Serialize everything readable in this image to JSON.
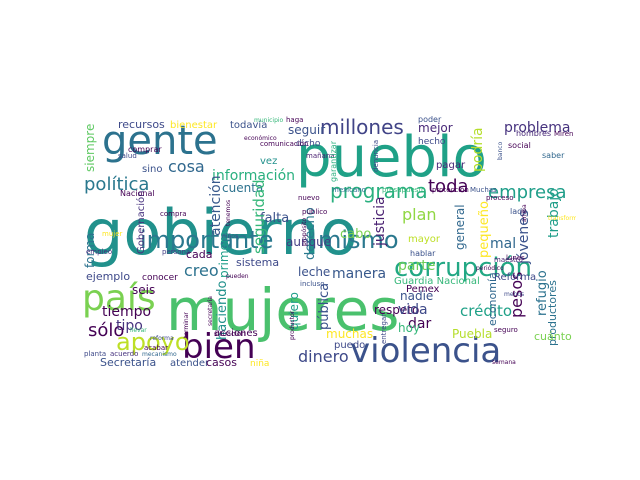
{
  "words": [
    {
      "text": "gobierno",
      "color": "#21918c"
    },
    {
      "text": "mujeres",
      "color": "#4ac16d"
    },
    {
      "text": "pueblo",
      "color": "#1fa187"
    },
    {
      "text": "gente",
      "color": "#2c728e"
    },
    {
      "text": "violencia",
      "color": "#3b528b"
    },
    {
      "text": "bien",
      "color": "#440154"
    },
    {
      "text": "país",
      "color": "#7ad151"
    },
    {
      "text": "corrupción",
      "color": "#22a884"
    },
    {
      "text": "importante",
      "color": "#2a788e"
    },
    {
      "text": "mismo",
      "color": "#2a788e"
    },
    {
      "text": "apoyo",
      "color": "#bddf26"
    },
    {
      "text": "millones",
      "color": "#414487"
    },
    {
      "text": "programa",
      "color": "#2ab07f"
    },
    {
      "text": "empresa",
      "color": "#1f9e89"
    },
    {
      "text": "política",
      "color": "#2a788e"
    },
    {
      "text": "toda",
      "color": "#440154"
    },
    {
      "text": "dinero",
      "color": "#3e4989"
    },
    {
      "text": "cosa",
      "color": "#31688e"
    },
    {
      "text": "información",
      "color": "#2ab07f"
    },
    {
      "text": "sólo",
      "color": "#440154"
    },
    {
      "text": "problema",
      "color": "#46327e"
    },
    {
      "text": "mejor",
      "color": "#482878"
    },
    {
      "text": "seguir",
      "color": "#3b528b"
    },
    {
      "text": "siempre",
      "color": "#5ec962"
    },
    {
      "text": "recursos",
      "color": "#3e4989"
    },
    {
      "text": "bienestar",
      "color": "#fde725"
    },
    {
      "text": "todavía",
      "color": "#3b528b"
    },
    {
      "text": "hecho",
      "color": "#3e4989"
    },
    {
      "text": "poder",
      "color": "#3b528b"
    },
    {
      "text": "podría",
      "color": "#b5de2b"
    },
    {
      "text": "saber",
      "color": "#31688e"
    },
    {
      "text": "cuenta",
      "color": "#2c728e"
    },
    {
      "text": "falta",
      "color": "#3b528b"
    },
    {
      "text": "pagar",
      "color": "#482878"
    },
    {
      "text": "justicia",
      "color": "#481f70"
    },
    {
      "text": "seguridad",
      "color": "#35b779"
    },
    {
      "text": "atención",
      "color": "#38598c"
    },
    {
      "text": "derecho",
      "color": "#2a788e"
    },
    {
      "text": "plan",
      "color": "#90d743"
    },
    {
      "text": "parte",
      "color": "#6ece58"
    },
    {
      "text": "general",
      "color": "#31688e"
    },
    {
      "text": "pequeño",
      "color": "#fde725"
    },
    {
      "text": "trabajo",
      "color": "#1f9e89"
    },
    {
      "text": "jóvenes",
      "color": "#3b528b"
    },
    {
      "text": "cabo",
      "color": "#7ad151"
    },
    {
      "text": "aunque",
      "color": "#433e85"
    },
    {
      "text": "seis",
      "color": "#440154"
    },
    {
      "text": "primero",
      "color": "#1f9e89"
    },
    {
      "text": "creo",
      "color": "#2c728e"
    },
    {
      "text": "tiempo",
      "color": "#440154"
    },
    {
      "text": "tipo",
      "color": "#46327e"
    },
    {
      "text": "forma",
      "color": "#2c728e"
    },
    {
      "text": "cada",
      "color": "#440154"
    },
    {
      "text": "ejemplo",
      "color": "#3e4989"
    },
    {
      "text": "leche",
      "color": "#3b528b"
    },
    {
      "text": "manera",
      "color": "#38598c"
    },
    {
      "text": "pública",
      "color": "#3b528b"
    },
    {
      "text": "haciendo",
      "color": "#21918c"
    },
    {
      "text": "quiero",
      "color": "#1f9e89"
    },
    {
      "text": "muchas",
      "color": "#fde725"
    },
    {
      "text": "puedo",
      "color": "#3e4989"
    },
    {
      "text": "respeto",
      "color": "#440154"
    },
    {
      "text": "nadie",
      "color": "#3b528b"
    },
    {
      "text": "vida",
      "color": "#3e4989"
    },
    {
      "text": "dar",
      "color": "#440154"
    },
    {
      "text": "hoy",
      "color": "#35b779"
    },
    {
      "text": "crédito",
      "color": "#1fa187"
    },
    {
      "text": "Puebla",
      "color": "#b5de2b"
    },
    {
      "text": "refugio",
      "color": "#2c728e"
    },
    {
      "text": "pesos",
      "color": "#440154"
    },
    {
      "text": "economía",
      "color": "#31688e"
    },
    {
      "text": "productores",
      "color": "#2c728e"
    },
    {
      "text": "cuánto",
      "color": "#7ad151"
    },
    {
      "text": "Pemex",
      "color": "#440154"
    },
    {
      "text": "Secretaría",
      "color": "#3b528b"
    },
    {
      "text": "atender",
      "color": "#3b528b"
    },
    {
      "text": "casos",
      "color": "#440154"
    },
    {
      "text": "sistema",
      "color": "#3e4989"
    },
    {
      "text": "acciones",
      "color": "#440154"
    },
    {
      "text": "Guardia Nacional",
      "color": "#35b779"
    },
    {
      "text": "Reforma",
      "color": "#3e4989"
    },
    {
      "text": "conocer",
      "color": "#440154"
    },
    {
      "text": "Gobernación",
      "color": "#46327e"
    },
    {
      "text": "mayor",
      "color": "#bddf26"
    },
    {
      "text": "hablar",
      "color": "#3b528b"
    },
    {
      "text": "lado",
      "color": "#3b528b"
    },
    {
      "text": "sino",
      "color": "#3b528b"
    },
    {
      "text": "vez",
      "color": "#21918c"
    },
    {
      "text": "dicho",
      "color": "#3e4989"
    },
    {
      "text": "niña",
      "color": "#fde725"
    },
    {
      "text": "mal",
      "color": "#31688e"
    },
    {
      "text": "hombres",
      "color": "#482878"
    },
    {
      "text": "social",
      "color": "#440154"
    },
    {
      "text": "comprar",
      "color": "#440154"
    },
    {
      "text": "salud",
      "color": "#3e4989"
    },
    {
      "text": "Nacional",
      "color": "#440154"
    },
    {
      "text": "comunicación",
      "color": "#440154"
    },
    {
      "text": "mañana",
      "color": "#481f70"
    },
    {
      "text": "haga",
      "color": "#440154"
    },
    {
      "text": "municipio",
      "color": "#35b779"
    },
    {
      "text": "garantizar",
      "color": "#2ab07f"
    },
    {
      "text": "denuncia",
      "color": "#3e4989"
    },
    {
      "text": "protección",
      "color": "#440154"
    },
    {
      "text": "Muchas",
      "color": "#3b528b"
    },
    {
      "text": "proceso",
      "color": "#440154"
    },
    {
      "text": "mexicano",
      "color": "#2c728e"
    },
    {
      "text": "presupuesto",
      "color": "#35b779"
    },
    {
      "text": "nuevo",
      "color": "#440154"
    },
    {
      "text": "compra",
      "color": "#440154"
    },
    {
      "text": "persona",
      "color": "#433e85"
    },
    {
      "text": "empleo",
      "color": "#46327e"
    },
    {
      "text": "mujer",
      "color": "#fde725"
    },
    {
      "text": "incluso",
      "color": "#3b528b"
    },
    {
      "text": "entregar",
      "color": "#3e4989"
    },
    {
      "text": "lunes",
      "color": "#440154"
    },
    {
      "text": "maestro",
      "color": "#481f70"
    },
    {
      "text": "menos",
      "color": "#3e4989"
    },
    {
      "text": "reforma",
      "color": "#3e4989"
    },
    {
      "text": "acabar",
      "color": "#440154"
    },
    {
      "text": "situación",
      "color": "#440154"
    },
    {
      "text": "mecanismo",
      "color": "#31688e"
    },
    {
      "text": "planta",
      "color": "#3e4989"
    },
    {
      "text": "acuerdo",
      "color": "#46327e"
    },
    {
      "text": "semana",
      "color": "#440154"
    },
    {
      "text": "seguro",
      "color": "#440154"
    },
    {
      "text": "Miren",
      "color": "#440154"
    },
    {
      "text": "económico",
      "color": "#440154"
    },
    {
      "text": "público",
      "color": "#440154"
    },
    {
      "text": "terminar",
      "color": "#440154"
    },
    {
      "text": "banco",
      "color": "#3b528b"
    },
    {
      "text": "tenemos",
      "color": "#440154"
    },
    {
      "text": "niños",
      "color": "#3e4989"
    },
    {
      "text": "pueden",
      "color": "#440154"
    },
    {
      "text": "propósito",
      "color": "#440154"
    },
    {
      "text": "periódico",
      "color": "#440154"
    },
    {
      "text": "productor",
      "color": "#440154"
    },
    {
      "text": "secretaria",
      "color": "#440154"
    },
    {
      "text": "arriba",
      "color": "#440154"
    },
    {
      "text": "transformación",
      "color": "#fde725"
    },
    {
      "text": "llevar",
      "color": "#35b779"
    }
  ]
}
